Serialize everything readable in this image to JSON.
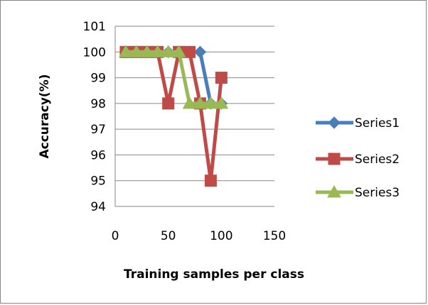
{
  "chart_data": {
    "type": "line",
    "title": "",
    "xlabel": "Training samples per class",
    "ylabel": "Accuracy(%)",
    "xlim": [
      0,
      150
    ],
    "ylim": [
      94,
      101
    ],
    "xticks": [
      0,
      50,
      100,
      150
    ],
    "yticks": [
      94,
      95,
      96,
      97,
      98,
      99,
      100,
      101
    ],
    "grid": "horizontal",
    "legend_position": "right",
    "series": [
      {
        "name": "Series1",
        "color": "#4a7ebb",
        "marker": "diamond",
        "x": [
          10,
          20,
          30,
          40,
          50,
          60,
          70,
          80,
          90,
          100
        ],
        "y": [
          100,
          100,
          100,
          100,
          100,
          100,
          100,
          100,
          98,
          98
        ]
      },
      {
        "name": "Series2",
        "color": "#be4b48",
        "marker": "square",
        "x": [
          10,
          20,
          30,
          40,
          50,
          60,
          70,
          80,
          90,
          100
        ],
        "y": [
          100,
          100,
          100,
          100,
          98,
          100,
          100,
          98,
          95,
          99
        ]
      },
      {
        "name": "Series3",
        "color": "#98b954",
        "marker": "triangle",
        "x": [
          10,
          20,
          30,
          40,
          50,
          60,
          70,
          80,
          90,
          100
        ],
        "y": [
          100,
          100,
          100,
          100,
          100,
          100,
          98,
          98,
          98,
          98
        ]
      }
    ]
  }
}
